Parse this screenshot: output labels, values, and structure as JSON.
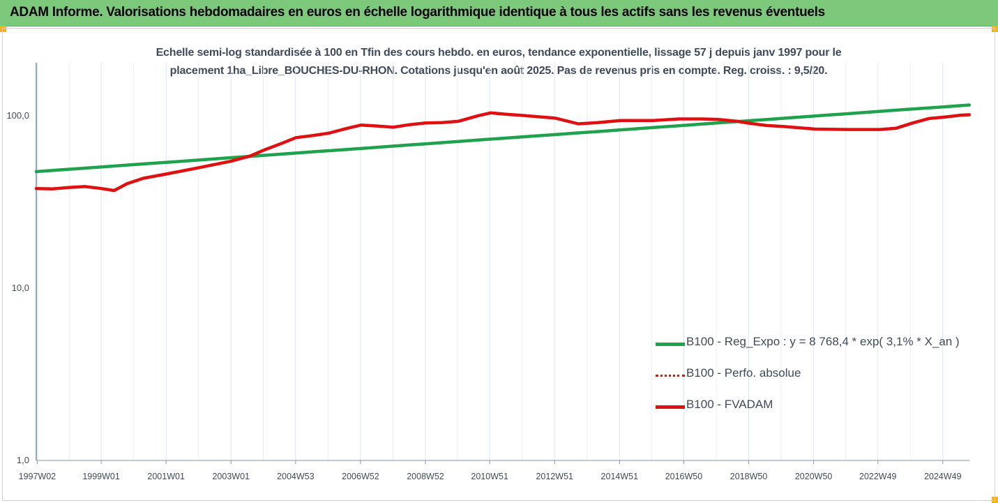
{
  "header": {
    "title": "ADAM Informe. Valorisations hebdomadaires en euros en échelle logarithmique identique à tous les actifs sans les revenus éventuels"
  },
  "chart_data": {
    "type": "line",
    "title_line1": "Echelle semi-log standardisée à 100 en Tfin des cours hebdo. en euros, tendance exponentielle, lissage 57 j depuis janv 1997 pour le",
    "title_line2": "placement 1ha_Libre_BOUCHES-DU-RHON. Cotations jusqu'en août 2025. Pas de revenus pris en compte. Reg. croiss. : 9,5/20.",
    "y_scale": "log",
    "ylim": [
      1,
      200
    ],
    "y_ticks": [
      {
        "value": 1,
        "label": "1,0"
      },
      {
        "value": 10,
        "label": "10,0"
      },
      {
        "value": 100,
        "label": "100,0"
      }
    ],
    "xlim": [
      1997.0,
      2025.75
    ],
    "x_ticks": [
      {
        "value": 1997.03,
        "label": "1997W02"
      },
      {
        "value": 1999.0,
        "label": "1999W01"
      },
      {
        "value": 2001.0,
        "label": "2001W01"
      },
      {
        "value": 2003.0,
        "label": "2003W01"
      },
      {
        "value": 2004.99,
        "label": "2004W53"
      },
      {
        "value": 2006.99,
        "label": "2006W52"
      },
      {
        "value": 2008.99,
        "label": "2008W52"
      },
      {
        "value": 2010.97,
        "label": "2010W51"
      },
      {
        "value": 2012.97,
        "label": "2012W51"
      },
      {
        "value": 2014.97,
        "label": "2014W51"
      },
      {
        "value": 2016.95,
        "label": "2016W50"
      },
      {
        "value": 2018.95,
        "label": "2018W50"
      },
      {
        "value": 2020.95,
        "label": "2020W50"
      },
      {
        "value": 2022.93,
        "label": "2022W49"
      },
      {
        "value": 2024.93,
        "label": "2024W49"
      }
    ],
    "grid": "vertical",
    "legend_position": "bottom-right",
    "series": [
      {
        "name": "B100 - Reg_Expo : y = 8 768,4 * exp( 3,1% *  X_an )",
        "color": "#1ea34c",
        "style": "solid",
        "x": [
          1997.0,
          2025.75
        ],
        "y": [
          47.0,
          114.5
        ]
      },
      {
        "name": "B100 - Perfo. absolue",
        "color": "#e01010",
        "style": "dotted",
        "x": [],
        "y": []
      },
      {
        "name": "B100 - FVADAM",
        "color": "#e01010",
        "style": "solid",
        "x": [
          1997.0,
          1997.5,
          1998.0,
          1998.5,
          1999.0,
          1999.4,
          1999.8,
          2000.3,
          2001.0,
          2002.0,
          2003.0,
          2003.6,
          2004.0,
          2004.6,
          2005.0,
          2005.5,
          2006.0,
          2006.6,
          2007.0,
          2007.5,
          2008.0,
          2008.5,
          2009.0,
          2009.5,
          2010.0,
          2010.6,
          2011.0,
          2011.5,
          2012.0,
          2013.0,
          2013.7,
          2014.3,
          2015.0,
          2016.0,
          2016.8,
          2017.5,
          2018.0,
          2018.6,
          2019.0,
          2019.5,
          2020.0,
          2020.5,
          2021.0,
          2022.0,
          2023.0,
          2023.5,
          2024.0,
          2024.5,
          2025.0,
          2025.5,
          2025.75
        ],
        "y": [
          37.5,
          37.3,
          38.0,
          38.5,
          37.5,
          36.5,
          40.0,
          43.0,
          45.5,
          49.5,
          54.0,
          58.0,
          62.5,
          69.0,
          74.0,
          76.0,
          78.5,
          84.0,
          87.5,
          86.5,
          85.0,
          88.0,
          90.0,
          90.5,
          92.0,
          99.0,
          103.0,
          101.0,
          99.5,
          96.0,
          89.0,
          90.5,
          93.0,
          93.0,
          95.0,
          95.0,
          94.5,
          92.0,
          89.5,
          87.0,
          86.0,
          84.5,
          83.0,
          82.5,
          82.5,
          84.0,
          90.0,
          95.5,
          97.5,
          100.0,
          100.5
        ]
      }
    ]
  }
}
